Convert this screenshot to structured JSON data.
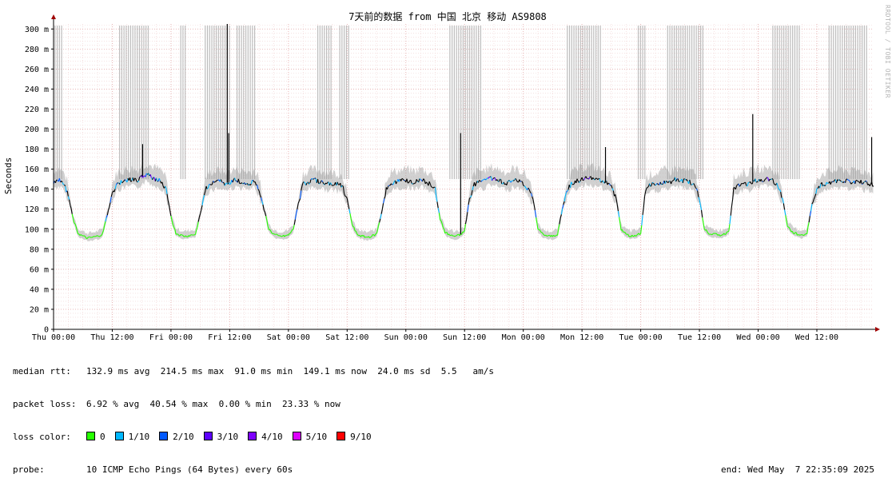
{
  "watermark": "RRDTOOL / TOBI OETIKER",
  "chart_data": {
    "type": "line",
    "title": "7天前的数据 from 中国 北京 移动 AS9808",
    "ylabel": "Seconds",
    "ylim": [
      0,
      305
    ],
    "y_ticks": [
      0,
      20,
      40,
      60,
      80,
      100,
      120,
      140,
      160,
      180,
      200,
      220,
      240,
      260,
      280,
      300
    ],
    "y_tick_labels": [
      "0",
      "20 m",
      "40 m",
      "60 m",
      "80 m",
      "100 m",
      "120 m",
      "140 m",
      "160 m",
      "180 m",
      "200 m",
      "220 m",
      "240 m",
      "260 m",
      "280 m",
      "300 m"
    ],
    "x_range_hours": [
      0,
      167.6
    ],
    "x_tick_hours": [
      0,
      12,
      24,
      36,
      48,
      60,
      72,
      84,
      96,
      108,
      120,
      132,
      144,
      156
    ],
    "x_tick_labels": [
      "Thu 00:00",
      "Thu 12:00",
      "Fri 00:00",
      "Fri 12:00",
      "Sat 00:00",
      "Sat 12:00",
      "Sun 00:00",
      "Sun 12:00",
      "Mon 00:00",
      "Mon 12:00",
      "Tue 00:00",
      "Tue 12:00",
      "Wed 00:00",
      "Wed 12:00"
    ],
    "grid": true,
    "median_series_ms": {
      "x": [
        0,
        1,
        2,
        3,
        4,
        5,
        6,
        7,
        8,
        9,
        10,
        11,
        12,
        13,
        14,
        15,
        16,
        17,
        18,
        19,
        20,
        21,
        22,
        23,
        24,
        25,
        26,
        27,
        28,
        29,
        30,
        31,
        32,
        33,
        34,
        35,
        36,
        37,
        38,
        39,
        40,
        41,
        42,
        43,
        44,
        45,
        46,
        47,
        48,
        49,
        50,
        51,
        52,
        53,
        54,
        55,
        56,
        57,
        58,
        59,
        60,
        61,
        62,
        63,
        64,
        65,
        66,
        67,
        68,
        69,
        70,
        71,
        72,
        73,
        74,
        75,
        76,
        77,
        78,
        79,
        80,
        81,
        82,
        83,
        84,
        85,
        86,
        87,
        88,
        89,
        90,
        91,
        92,
        93,
        94,
        95,
        96,
        97,
        98,
        99,
        100,
        101,
        102,
        103,
        104,
        105,
        106,
        107,
        108,
        109,
        110,
        111,
        112,
        113,
        114,
        115,
        116,
        117,
        118,
        119,
        120,
        121,
        122,
        123,
        124,
        125,
        126,
        127,
        128,
        129,
        130,
        131,
        132,
        133,
        134,
        135,
        136,
        137,
        138,
        139,
        140,
        141,
        142,
        143,
        144,
        145,
        146,
        147,
        148,
        149,
        150,
        151,
        152,
        153,
        154,
        155,
        156,
        157,
        158,
        159,
        160,
        161,
        162,
        163,
        164,
        165,
        166,
        167
      ],
      "y": [
        147,
        150,
        146,
        135,
        110,
        96,
        93,
        91,
        92,
        93,
        95,
        115,
        135,
        146,
        147,
        149,
        150,
        148,
        152,
        155,
        152,
        150,
        148,
        140,
        112,
        96,
        94,
        93,
        94,
        95,
        115,
        140,
        146,
        147,
        148,
        146,
        147,
        149,
        148,
        147,
        146,
        148,
        140,
        120,
        100,
        95,
        93,
        93,
        94,
        100,
        125,
        145,
        147,
        149,
        148,
        147,
        146,
        146,
        145,
        143,
        130,
        105,
        95,
        93,
        92,
        93,
        95,
        115,
        140,
        146,
        147,
        148,
        149,
        148,
        147,
        150,
        147,
        145,
        140,
        110,
        97,
        94,
        93,
        94,
        98,
        130,
        145,
        147,
        148,
        150,
        151,
        149,
        147,
        146,
        150,
        148,
        146,
        140,
        130,
        100,
        95,
        93,
        93,
        95,
        120,
        140,
        146,
        148,
        150,
        152,
        151,
        150,
        148,
        146,
        142,
        130,
        100,
        95,
        93,
        94,
        96,
        140,
        144,
        145,
        146,
        148,
        146,
        150,
        149,
        148,
        147,
        145,
        130,
        100,
        96,
        95,
        94,
        95,
        98,
        140,
        143,
        146,
        145,
        148,
        150,
        149,
        151,
        148,
        144,
        130,
        103,
        97,
        95,
        94,
        96,
        125,
        140,
        145,
        146,
        147,
        148,
        149,
        148,
        146,
        148,
        147,
        146,
        145
      ]
    },
    "loss_spikes_hours": [
      [
        0.3,
        2.0
      ],
      [
        13.5,
        19.5
      ],
      [
        26.0,
        27.0
      ],
      [
        31.0,
        36.0
      ],
      [
        37.5,
        41.5
      ],
      [
        54.0,
        57.0
      ],
      [
        58.5,
        60.5
      ],
      [
        81.0,
        87.5
      ],
      [
        105.0,
        112.0
      ],
      [
        119.5,
        121.0
      ],
      [
        125.5,
        133.0
      ],
      [
        147.0,
        152.5
      ],
      [
        158.5,
        166.5
      ]
    ],
    "ping_spikes": [
      {
        "x": 18.2,
        "y": 185
      },
      {
        "x": 35.5,
        "y": 305
      },
      {
        "x": 35.8,
        "y": 196
      },
      {
        "x": 83.2,
        "y": 196
      },
      {
        "x": 112.8,
        "y": 182
      },
      {
        "x": 142.9,
        "y": 215
      },
      {
        "x": 167.2,
        "y": 192
      }
    ]
  },
  "stats": {
    "median_rtt": {
      "label": "median rtt:",
      "text": "132.9 ms avg  214.5 ms max  91.0 ms min  149.1 ms now  24.0 ms sd  5.5   am/s"
    },
    "packet_loss": {
      "label": "packet loss:",
      "text": "6.92 % avg  40.54 % max  0.00 % min  23.33 % now"
    },
    "loss_color": {
      "label": "loss color:",
      "items": [
        {
          "label": "0",
          "color": "#26ff00"
        },
        {
          "label": "1/10",
          "color": "#00b8ff"
        },
        {
          "label": "2/10",
          "color": "#0059ff"
        },
        {
          "label": "3/10",
          "color": "#5e00ff"
        },
        {
          "label": "4/10",
          "color": "#7e00ff"
        },
        {
          "label": "5/10",
          "color": "#dd00ff"
        },
        {
          "label": "9/10",
          "color": "#ff0000"
        }
      ]
    },
    "probe": {
      "label": "probe:",
      "text": "10 ICMP Echo Pings (64 Bytes) every 60s",
      "end": "end: Wed May  7 22:35:09 2025"
    }
  }
}
